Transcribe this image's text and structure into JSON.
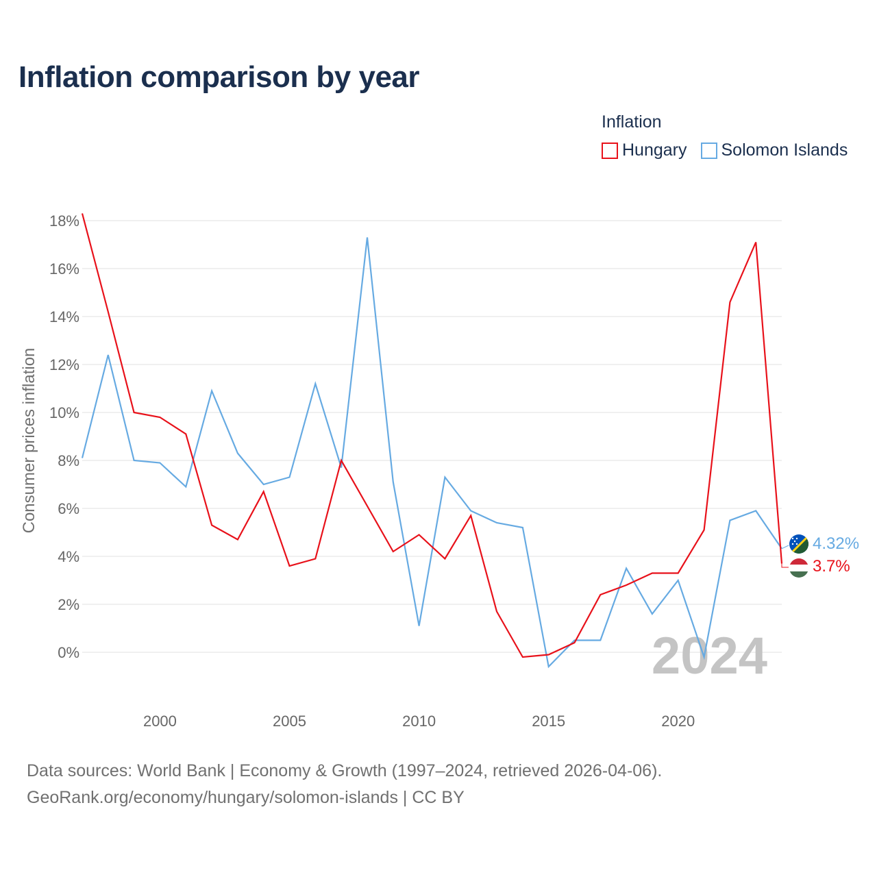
{
  "title": "Inflation comparison by year",
  "legend": {
    "title": "Inflation",
    "items": [
      {
        "label": "Hungary",
        "color": "#e8111a"
      },
      {
        "label": "Solomon Islands",
        "color": "#66aae2"
      }
    ]
  },
  "footer": {
    "line1": "Data sources: World Bank | Economy & Growth (1997–2024, retrieved 2026-04-06).",
    "line2": "GeoRank.org/economy/hungary/solomon-islands | CC BY"
  },
  "chart_data": {
    "type": "line",
    "title": "Inflation comparison by year",
    "xlabel": "",
    "ylabel": "Consumer prices inflation",
    "xlim": [
      1997,
      2024
    ],
    "ylim": [
      -1,
      18
    ],
    "y_ticks": [
      0,
      2,
      4,
      6,
      8,
      10,
      12,
      14,
      16,
      18
    ],
    "y_tick_labels": [
      "0%",
      "2%",
      "4%",
      "6%",
      "8%",
      "10%",
      "12%",
      "14%",
      "16%",
      "18%"
    ],
    "x_ticks": [
      2000,
      2005,
      2010,
      2015,
      2020
    ],
    "x_tick_labels": [
      "2000",
      "2005",
      "2010",
      "2015",
      "2020"
    ],
    "grid": true,
    "legend_position": "top-right",
    "year_watermark": "2024",
    "x": [
      1997,
      1998,
      1999,
      2000,
      2001,
      2002,
      2003,
      2004,
      2005,
      2006,
      2007,
      2008,
      2009,
      2010,
      2011,
      2012,
      2013,
      2014,
      2015,
      2016,
      2017,
      2018,
      2019,
      2020,
      2021,
      2022,
      2023,
      2024
    ],
    "series": [
      {
        "name": "Hungary",
        "color": "#e8111a",
        "end_label": "3.7%",
        "values": [
          18.3,
          14.2,
          10.0,
          9.8,
          9.1,
          5.3,
          4.7,
          6.7,
          3.6,
          3.9,
          8.0,
          6.1,
          4.2,
          4.9,
          3.9,
          5.7,
          1.7,
          -0.2,
          -0.1,
          0.4,
          2.4,
          2.8,
          3.3,
          3.3,
          5.1,
          14.6,
          17.1,
          3.7
        ]
      },
      {
        "name": "Solomon Islands",
        "color": "#66aae2",
        "end_label": "4.32%",
        "values": [
          8.1,
          12.4,
          8.0,
          7.9,
          6.9,
          10.9,
          8.3,
          7.0,
          7.3,
          11.2,
          7.7,
          17.3,
          7.1,
          1.1,
          7.3,
          5.9,
          5.4,
          5.2,
          -0.6,
          0.5,
          0.5,
          3.5,
          1.6,
          3.0,
          -0.2,
          5.5,
          5.9,
          4.32
        ]
      }
    ]
  }
}
